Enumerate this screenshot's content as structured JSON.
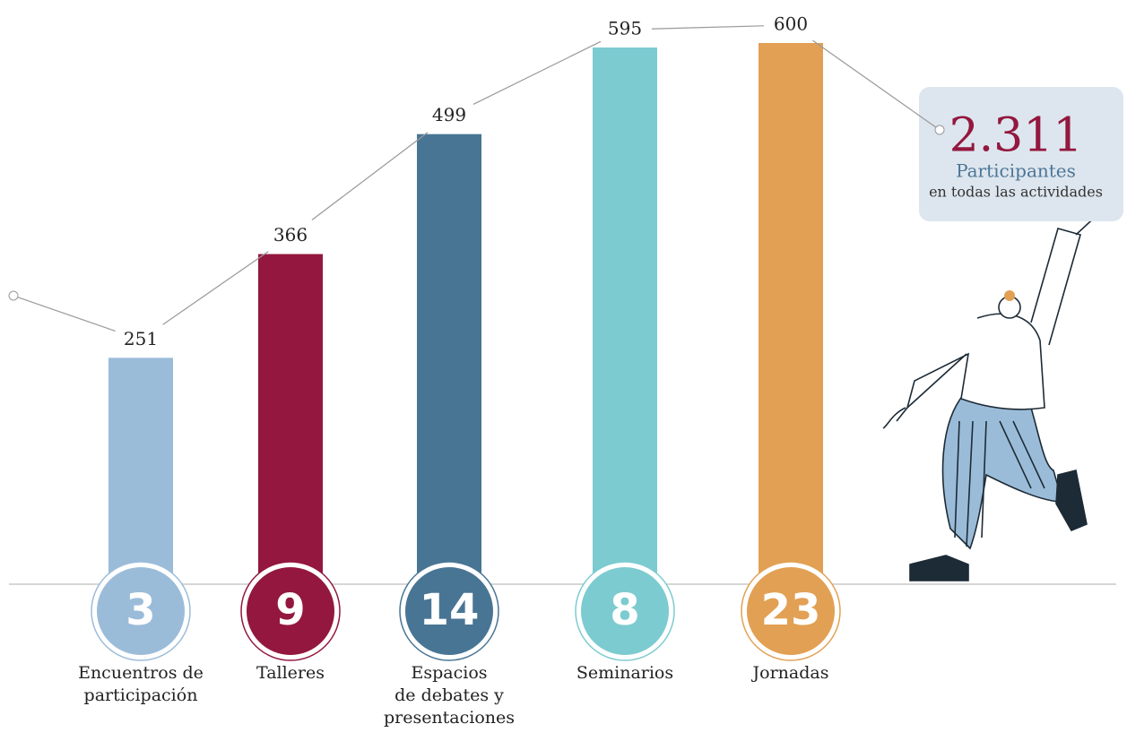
{
  "chart_data": {
    "type": "bar",
    "categories": [
      [
        "Encuentros de",
        "participación"
      ],
      [
        "Talleres"
      ],
      [
        "Espacios",
        "de debates y",
        "presentaciones"
      ],
      [
        "Seminarios"
      ],
      [
        "Jornadas"
      ]
    ],
    "values": [
      251,
      366,
      499,
      595,
      600
    ],
    "counts": [
      3,
      9,
      14,
      8,
      23
    ],
    "colors": [
      "#9bbcd9",
      "#93173e",
      "#487594",
      "#7ccbd0",
      "#e2a054"
    ],
    "ylim": [
      0,
      600
    ],
    "total": {
      "value": 2311,
      "label": "2.311"
    },
    "total_title": "Participantes",
    "total_subtitle": "en todas las actividades"
  }
}
